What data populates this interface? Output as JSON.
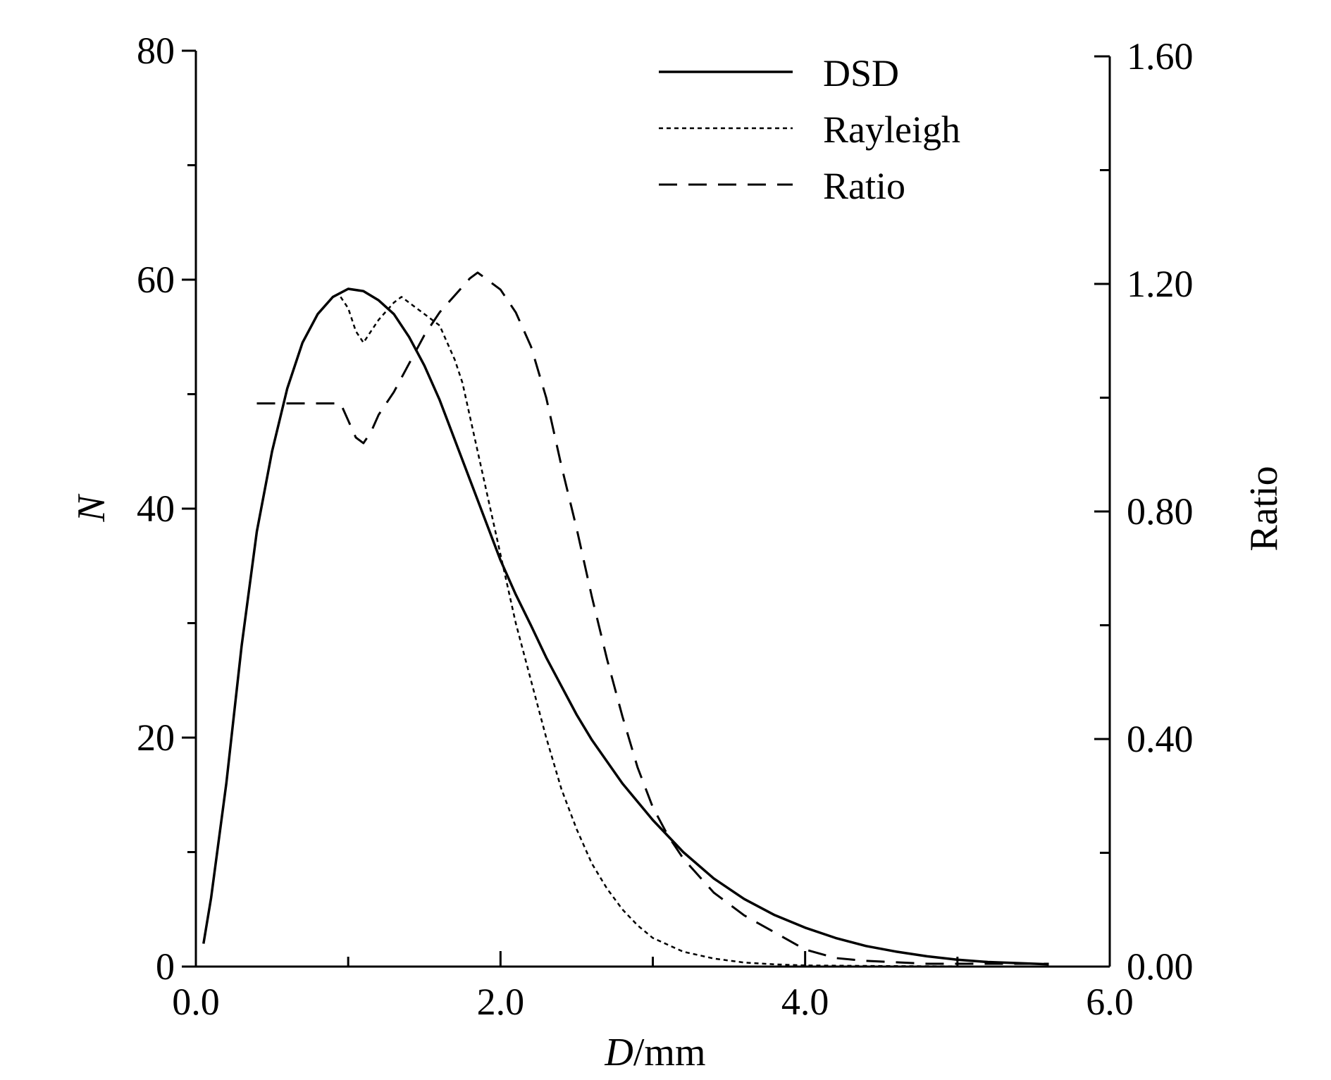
{
  "chart_data": {
    "type": "line",
    "xlabel": {
      "italic": "D",
      "rest": "/mm"
    },
    "ylabel": "N",
    "y2label": "Ratio",
    "xlim": [
      0,
      6
    ],
    "ylim": [
      0,
      80
    ],
    "y2lim": [
      0,
      1.6
    ],
    "x_ticks": [
      "0.0",
      "2.0",
      "4.0",
      "6.0"
    ],
    "y_ticks": [
      "0",
      "20",
      "40",
      "60",
      "80"
    ],
    "y2_ticks": [
      "0.00",
      "0.40",
      "0.80",
      "1.20",
      "1.60"
    ],
    "legend_position": "top-right",
    "series": [
      {
        "name": "DSD",
        "axis": "left",
        "style": "solid",
        "points": [
          [
            0.05,
            2
          ],
          [
            0.1,
            6
          ],
          [
            0.2,
            16
          ],
          [
            0.3,
            28
          ],
          [
            0.4,
            38
          ],
          [
            0.5,
            45
          ],
          [
            0.6,
            50.5
          ],
          [
            0.7,
            54.5
          ],
          [
            0.8,
            57
          ],
          [
            0.9,
            58.5
          ],
          [
            1.0,
            59.2
          ],
          [
            1.1,
            59
          ],
          [
            1.2,
            58.2
          ],
          [
            1.3,
            57
          ],
          [
            1.4,
            55
          ],
          [
            1.5,
            52.5
          ],
          [
            1.6,
            49.5
          ],
          [
            1.7,
            46
          ],
          [
            1.8,
            42.5
          ],
          [
            1.9,
            39
          ],
          [
            2.0,
            35.5
          ],
          [
            2.1,
            32.5
          ],
          [
            2.2,
            29.8
          ],
          [
            2.3,
            27
          ],
          [
            2.4,
            24.5
          ],
          [
            2.5,
            22
          ],
          [
            2.6,
            19.8
          ],
          [
            2.8,
            16
          ],
          [
            3.0,
            12.8
          ],
          [
            3.2,
            10
          ],
          [
            3.4,
            7.7
          ],
          [
            3.6,
            5.9
          ],
          [
            3.8,
            4.5
          ],
          [
            4.0,
            3.4
          ],
          [
            4.2,
            2.5
          ],
          [
            4.4,
            1.8
          ],
          [
            4.6,
            1.3
          ],
          [
            4.8,
            0.9
          ],
          [
            5.0,
            0.6
          ],
          [
            5.2,
            0.4
          ],
          [
            5.4,
            0.3
          ],
          [
            5.6,
            0.2
          ]
        ]
      },
      {
        "name": "Rayleigh",
        "axis": "left",
        "style": "dotted",
        "points": [
          [
            0.95,
            58.5
          ],
          [
            1.0,
            57.5
          ],
          [
            1.05,
            55.5
          ],
          [
            1.1,
            54.5
          ],
          [
            1.15,
            55.5
          ],
          [
            1.2,
            56.5
          ],
          [
            1.3,
            58
          ],
          [
            1.35,
            58.5
          ],
          [
            1.4,
            58
          ],
          [
            1.45,
            57.5
          ],
          [
            1.5,
            57
          ],
          [
            1.6,
            56
          ],
          [
            1.7,
            53
          ],
          [
            1.75,
            51
          ],
          [
            1.8,
            48
          ],
          [
            1.9,
            42
          ],
          [
            2.0,
            36
          ],
          [
            2.1,
            30
          ],
          [
            2.2,
            25
          ],
          [
            2.3,
            20
          ],
          [
            2.4,
            15.5
          ],
          [
            2.5,
            12
          ],
          [
            2.6,
            9
          ],
          [
            2.7,
            6.8
          ],
          [
            2.8,
            5
          ],
          [
            2.9,
            3.6
          ],
          [
            3.0,
            2.5
          ],
          [
            3.2,
            1.3
          ],
          [
            3.4,
            0.7
          ],
          [
            3.6,
            0.35
          ],
          [
            3.8,
            0.2
          ],
          [
            4.0,
            0.1
          ],
          [
            4.5,
            0.05
          ],
          [
            5.0,
            0.02
          ],
          [
            5.6,
            0
          ]
        ]
      },
      {
        "name": "Ratio",
        "axis": "right",
        "style": "dashed",
        "points": [
          [
            0.4,
            0.99
          ],
          [
            0.95,
            0.99
          ],
          [
            1.0,
            0.96
          ],
          [
            1.05,
            0.93
          ],
          [
            1.1,
            0.92
          ],
          [
            1.15,
            0.94
          ],
          [
            1.2,
            0.97
          ],
          [
            1.3,
            1.01
          ],
          [
            1.4,
            1.06
          ],
          [
            1.5,
            1.11
          ],
          [
            1.6,
            1.15
          ],
          [
            1.7,
            1.18
          ],
          [
            1.8,
            1.21
          ],
          [
            1.85,
            1.22
          ],
          [
            1.9,
            1.21
          ],
          [
            2.0,
            1.19
          ],
          [
            2.1,
            1.15
          ],
          [
            2.2,
            1.09
          ],
          [
            2.3,
            1.0
          ],
          [
            2.4,
            0.88
          ],
          [
            2.5,
            0.77
          ],
          [
            2.6,
            0.65
          ],
          [
            2.7,
            0.54
          ],
          [
            2.8,
            0.44
          ],
          [
            2.9,
            0.35
          ],
          [
            3.0,
            0.28
          ],
          [
            3.1,
            0.23
          ],
          [
            3.2,
            0.19
          ],
          [
            3.3,
            0.16
          ],
          [
            3.4,
            0.13
          ],
          [
            3.6,
            0.09
          ],
          [
            3.8,
            0.06
          ],
          [
            4.0,
            0.03
          ],
          [
            4.2,
            0.015
          ],
          [
            4.4,
            0.01
          ],
          [
            4.8,
            0.005
          ],
          [
            5.6,
            0.005
          ]
        ]
      }
    ]
  }
}
